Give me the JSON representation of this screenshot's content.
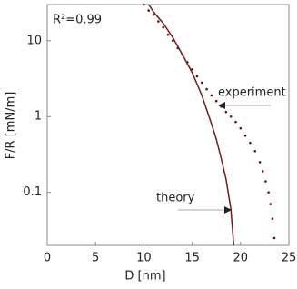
{
  "chart_data": {
    "type": "scatter",
    "xlabel": "D [nm]",
    "ylabel": "F/R [mN/m]",
    "xlim": [
      0,
      25
    ],
    "xticks": [
      0,
      5,
      10,
      15,
      20,
      25
    ],
    "ylim": [
      0.02,
      30
    ],
    "yticks": [
      0.1,
      1,
      10
    ],
    "log_y": true,
    "annotations": [
      "R²=0.99",
      "experiment",
      "theory"
    ],
    "series": [
      {
        "name": "experiment",
        "mode": "markers",
        "color": "#5a1414",
        "x": [
          10,
          10.5,
          11,
          11.5,
          12,
          12.5,
          13,
          13.5,
          14,
          14.5,
          15,
          15.5,
          16,
          16.5,
          17,
          17.5,
          18,
          18.5,
          19,
          19.5,
          20,
          20.5,
          21,
          21.5,
          22,
          22.3,
          22.6,
          22.9,
          23.1,
          23.3,
          23.5
        ],
        "values": [
          30,
          25,
          22,
          18,
          15,
          12,
          10,
          8,
          6.5,
          5.2,
          4.2,
          3.4,
          2.8,
          2.3,
          1.9,
          1.6,
          1.35,
          1.15,
          1.0,
          0.85,
          0.7,
          0.56,
          0.45,
          0.35,
          0.25,
          0.19,
          0.14,
          0.1,
          0.07,
          0.045,
          0.025
        ]
      },
      {
        "name": "theory",
        "mode": "line",
        "color": "#6b1d1d",
        "x": [
          10.5,
          11,
          12,
          13,
          14,
          15,
          16,
          17,
          17.5,
          18,
          18.5,
          19,
          19.3
        ],
        "values": [
          30,
          24,
          17,
          11,
          6.5,
          3.8,
          1.9,
          0.8,
          0.5,
          0.28,
          0.15,
          0.06,
          0.02
        ]
      }
    ]
  }
}
